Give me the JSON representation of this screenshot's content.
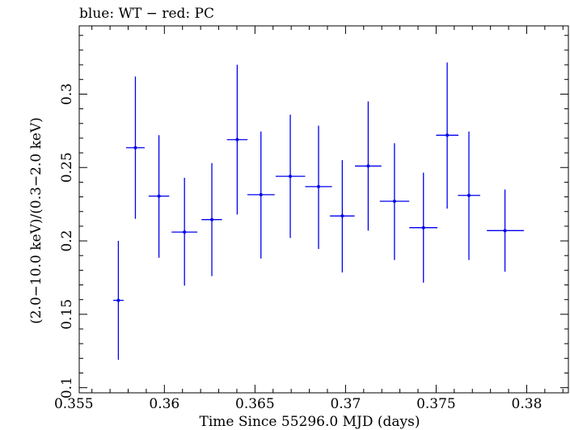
{
  "chart_data": {
    "type": "scatter",
    "title": "blue: WT − red: PC",
    "xlabel": "Time Since 55296.0 MJD (days)",
    "ylabel": "(2.0−10.0 keV)/(0.3−2.0 keV)",
    "xlim": [
      0.3553,
      0.3823
    ],
    "ylim": [
      0.0965,
      0.3465
    ],
    "x_ticks": [
      0.355,
      0.36,
      0.365,
      0.37,
      0.375,
      0.38
    ],
    "x_tick_labels": [
      "0.355",
      "0.36",
      "0.365",
      "0.37",
      "0.375",
      "0.38"
    ],
    "y_ticks": [
      0.1,
      0.15,
      0.2,
      0.25,
      0.3
    ],
    "y_tick_labels": [
      "0.1",
      "0.15",
      "0.2",
      "0.25",
      "0.3"
    ],
    "grid": false,
    "series": [
      {
        "color": "#0000ee",
        "points": [
          {
            "x": 0.35746,
            "xlo": 0.35718,
            "xhi": 0.35775,
            "y": 0.1595,
            "ylo": 0.119,
            "yhi": 0.2
          },
          {
            "x": 0.3584,
            "xlo": 0.35789,
            "xhi": 0.35891,
            "y": 0.2635,
            "ylo": 0.215,
            "yhi": 0.312
          },
          {
            "x": 0.3597,
            "xlo": 0.35913,
            "xhi": 0.36027,
            "y": 0.2305,
            "ylo": 0.1885,
            "yhi": 0.272
          },
          {
            "x": 0.36111,
            "xlo": 0.3604,
            "xhi": 0.36182,
            "y": 0.206,
            "ylo": 0.1695,
            "yhi": 0.243
          },
          {
            "x": 0.36262,
            "xlo": 0.36205,
            "xhi": 0.36318,
            "y": 0.2145,
            "ylo": 0.176,
            "yhi": 0.253
          },
          {
            "x": 0.36402,
            "xlo": 0.36345,
            "xhi": 0.36459,
            "y": 0.269,
            "ylo": 0.218,
            "yhi": 0.32
          },
          {
            "x": 0.36533,
            "xlo": 0.36458,
            "xhi": 0.36609,
            "y": 0.2315,
            "ylo": 0.188,
            "yhi": 0.2745
          },
          {
            "x": 0.36695,
            "xlo": 0.36614,
            "xhi": 0.36777,
            "y": 0.244,
            "ylo": 0.202,
            "yhi": 0.286
          },
          {
            "x": 0.36851,
            "xlo": 0.36777,
            "xhi": 0.36925,
            "y": 0.237,
            "ylo": 0.1945,
            "yhi": 0.2785
          },
          {
            "x": 0.36982,
            "xlo": 0.36914,
            "xhi": 0.3705,
            "y": 0.217,
            "ylo": 0.1785,
            "yhi": 0.255
          },
          {
            "x": 0.37125,
            "xlo": 0.37052,
            "xhi": 0.37198,
            "y": 0.251,
            "ylo": 0.207,
            "yhi": 0.295
          },
          {
            "x": 0.3727,
            "xlo": 0.37189,
            "xhi": 0.37352,
            "y": 0.227,
            "ylo": 0.187,
            "yhi": 0.2665
          },
          {
            "x": 0.3743,
            "xlo": 0.37352,
            "xhi": 0.37507,
            "y": 0.209,
            "ylo": 0.1715,
            "yhi": 0.2465
          },
          {
            "x": 0.37561,
            "xlo": 0.375,
            "xhi": 0.37623,
            "y": 0.272,
            "ylo": 0.222,
            "yhi": 0.3215
          },
          {
            "x": 0.37681,
            "xlo": 0.3762,
            "xhi": 0.37743,
            "y": 0.231,
            "ylo": 0.187,
            "yhi": 0.2745
          },
          {
            "x": 0.3788,
            "xlo": 0.3778,
            "xhi": 0.37984,
            "y": 0.207,
            "ylo": 0.179,
            "yhi": 0.235
          }
        ]
      }
    ]
  }
}
